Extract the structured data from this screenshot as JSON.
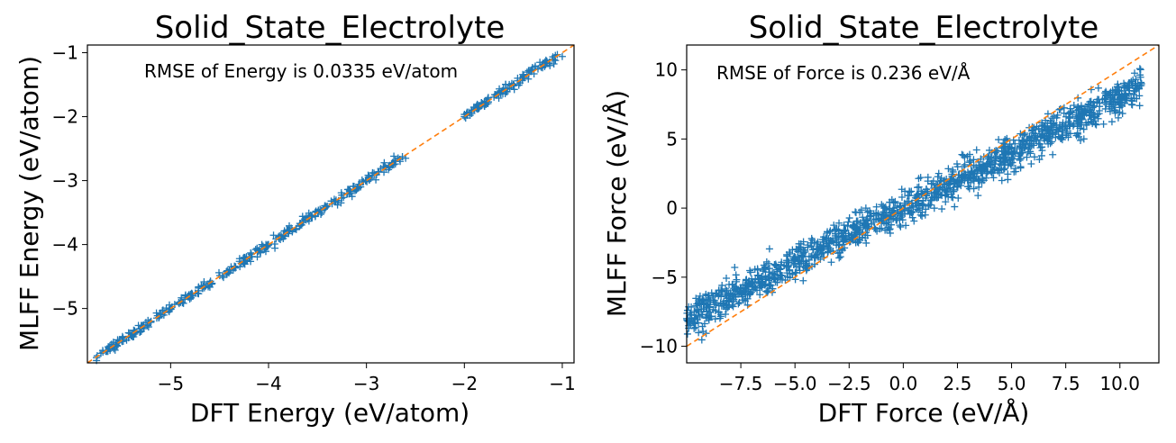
{
  "chart_data": [
    {
      "type": "scatter",
      "title": "Solid_State_Electrolyte",
      "xlabel": "DFT Energy (eV/atom)",
      "ylabel": "MLFF Energy (eV/atom)",
      "annotation": "RMSE of Energy is 0.0335 eV/atom",
      "xlim": [
        -5.85,
        -0.88
      ],
      "ylim": [
        -5.85,
        -0.88
      ],
      "xticks": [
        -5,
        -4,
        -3,
        -2,
        -1
      ],
      "yticks": [
        -5,
        -4,
        -3,
        -2,
        -1
      ],
      "xticklabels": [
        "−5",
        "−4",
        "−3",
        "−2",
        "−1"
      ],
      "yticklabels": [
        "−5",
        "−4",
        "−3",
        "−2",
        "−1"
      ],
      "grid": false,
      "marker": "+",
      "series": [
        {
          "color": "#1f77b4",
          "segments": [
            [
              -5.76,
              -5.2
            ],
            [
              -5.15,
              -4.0
            ],
            [
              -3.95,
              -2.62
            ],
            [
              -2.0,
              -1.74
            ],
            [
              -1.7,
              -1.05
            ]
          ],
          "x": [
            -5.75,
            -5.6,
            -5.4,
            -5.2,
            -5.0,
            -4.8,
            -4.6,
            -4.4,
            -4.2,
            -4.0,
            -3.8,
            -3.6,
            -3.4,
            -3.2,
            -3.0,
            -2.8,
            -2.6,
            -2.0,
            -1.9,
            -1.8,
            -1.6,
            -1.4,
            -1.2,
            -1.0
          ],
          "y": [
            -5.74,
            -5.6,
            -5.4,
            -5.2,
            -5.0,
            -4.8,
            -4.6,
            -4.4,
            -4.2,
            -4.0,
            -3.8,
            -3.6,
            -3.4,
            -3.2,
            -3.0,
            -2.8,
            -2.65,
            -2.0,
            -1.9,
            -1.8,
            -1.56,
            -1.38,
            -1.18,
            -1.06
          ]
        }
      ],
      "reference_line": {
        "style": "dashed",
        "color": "#ff7f0e",
        "x": [
          -5.85,
          -0.88
        ],
        "y": [
          -5.85,
          -0.88
        ]
      }
    },
    {
      "type": "scatter",
      "title": "Solid_State_Electrolyte",
      "xlabel": "DFT Force (eV/Å)",
      "ylabel": "MLFF Force (eV/Å)",
      "annotation": "RMSE of Force is 0.236 eV/Å",
      "xlim": [
        -10.0,
        11.8
      ],
      "ylim": [
        -11.2,
        11.8
      ],
      "xticks": [
        -7.5,
        -5.0,
        -2.5,
        0.0,
        2.5,
        5.0,
        7.5,
        10.0
      ],
      "yticks": [
        -10,
        -5,
        0,
        5,
        10
      ],
      "xticklabels": [
        "−7.5",
        "−5.0",
        "−2.5",
        "0.0",
        "2.5",
        "5.0",
        "7.5",
        "10.0"
      ],
      "yticklabels": [
        "−10",
        "−5",
        "0",
        "5",
        "10"
      ],
      "grid": false,
      "marker": "+",
      "series": [
        {
          "color": "#1f77b4",
          "x_range": [
            -10.0,
            11.0
          ],
          "trend_slope": 0.8,
          "trend_intercept": 0.0,
          "spread": 1.4,
          "x": [
            -10.0,
            -7.5,
            -5.0,
            -2.5,
            0.0,
            2.5,
            5.0,
            7.5,
            10.0,
            11.0
          ],
          "y": [
            -8.0,
            -6.0,
            -4.0,
            -2.0,
            0.0,
            2.0,
            4.0,
            6.0,
            8.0,
            9.0
          ]
        }
      ],
      "reference_line": {
        "style": "dashed",
        "color": "#ff7f0e",
        "x": [
          -10.0,
          11.8
        ],
        "y": [
          -10.0,
          11.8
        ]
      }
    }
  ]
}
